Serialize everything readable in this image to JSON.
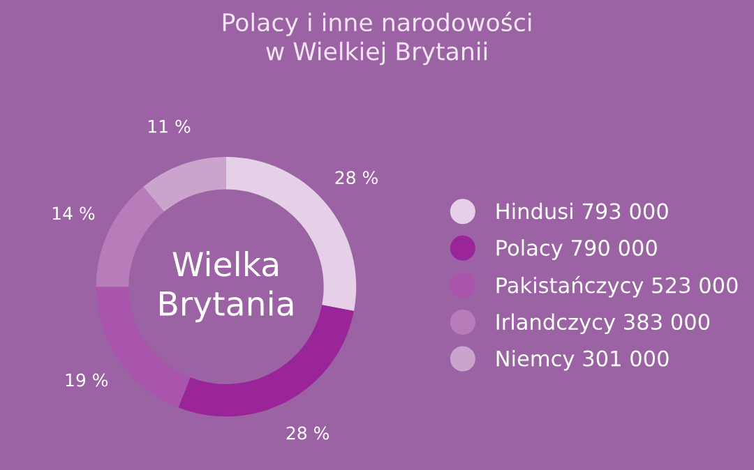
{
  "chart_data": {
    "type": "donut",
    "title": "Polacy i inne narodowości\nw Wielkiej Brytanii",
    "categories": [
      "Hindusi 793 000",
      "Polacy 790 000",
      "Pakistańczycy 523 000",
      "Irlandczycy 383 000",
      "Niemcy 301 000"
    ],
    "values": [
      28,
      28,
      19,
      14,
      11
    ],
    "colors": [
      "#e6d0e8",
      "#9a2598",
      "#a955ad",
      "#b77cba",
      "#caa4cd"
    ],
    "value_labels": [
      "28 %",
      "28 %",
      "19 %",
      "14 %",
      "11 %"
    ],
    "annotations": [
      "Wielka\nBrytania"
    ],
    "legend": "right"
  }
}
